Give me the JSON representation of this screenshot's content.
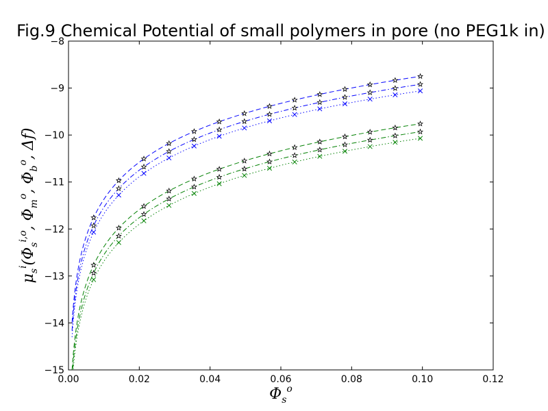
{
  "chart_data": {
    "type": "line",
    "title": "Fig.9 Chemical Potential of small polymers in pore (no PEG1k in)",
    "xlabel": "Φ_s^o",
    "ylabel": "μ_s^i (Φ_s^{i,o}, Φ_m^o, Φ_b^o, Δf)",
    "xlim": [
      0.0,
      0.12
    ],
    "ylim": [
      -15,
      -8
    ],
    "x_ticks": [
      "0.00",
      "0.02",
      "0.04",
      "0.06",
      "0.08",
      "0.10",
      "0.12"
    ],
    "y_ticks": [
      "−8",
      "−9",
      "−10",
      "−11",
      "−12",
      "−13",
      "−14",
      "−15"
    ],
    "x_tick_values": [
      0.0,
      0.02,
      0.04,
      0.06,
      0.08,
      0.1,
      0.12
    ],
    "y_tick_values": [
      -8,
      -9,
      -10,
      -11,
      -12,
      -13,
      -14,
      -15
    ],
    "grid": false,
    "legend": "none",
    "marker_x": [
      0.0071,
      0.0142,
      0.0213,
      0.0284,
      0.0355,
      0.0426,
      0.0497,
      0.0568,
      0.0639,
      0.071,
      0.0781,
      0.0852,
      0.0923,
      0.0994
    ],
    "series": [
      {
        "color": "#0000ff",
        "linestyle": "dashed",
        "marker": "star",
        "curve_a": -8.75,
        "curve_b": 1.14
      },
      {
        "color": "#0000ff",
        "linestyle": "dashdot",
        "marker": "star",
        "curve_a": -8.92,
        "curve_b": 1.14
      },
      {
        "color": "#0000ff",
        "linestyle": "dotted",
        "marker": "x",
        "curve_a": -9.06,
        "curve_b": 1.14
      },
      {
        "color": "#008000",
        "linestyle": "dashed",
        "marker": "star",
        "curve_a": -9.76,
        "curve_b": 1.14
      },
      {
        "color": "#008000",
        "linestyle": "dashdot",
        "marker": "star",
        "curve_a": -9.93,
        "curve_b": 1.14
      },
      {
        "color": "#008000",
        "linestyle": "dotted",
        "marker": "x",
        "curve_a": -10.07,
        "curve_b": 1.14
      }
    ],
    "curve_x_min": 0.001,
    "curve_x_max": 0.0994
  }
}
